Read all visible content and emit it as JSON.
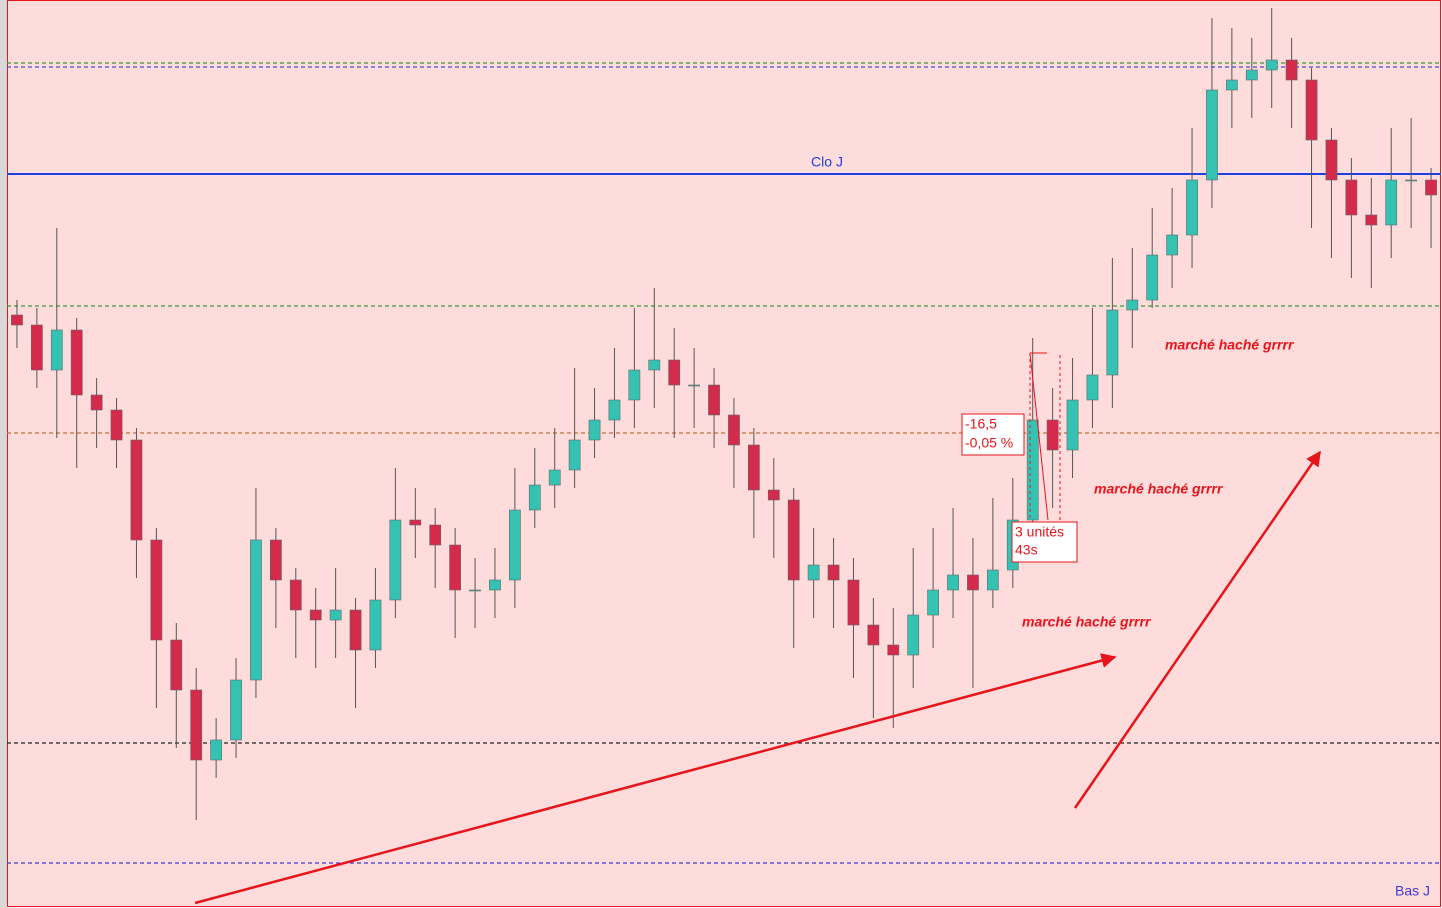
{
  "chart_data": {
    "type": "candlestick",
    "ylim": [
      0,
      908
    ],
    "up_color": "#34c3b3",
    "down_color": "#d42a4c",
    "open": [
      593,
      583,
      538,
      578,
      513,
      498,
      468,
      368,
      268,
      218,
      148,
      168,
      228,
      368,
      328,
      298,
      288,
      298,
      258,
      308,
      388,
      383,
      363,
      318,
      318,
      328,
      398,
      423,
      438,
      468,
      488,
      508,
      538,
      548,
      523,
      523,
      493,
      463,
      418,
      408,
      328,
      343,
      328,
      283,
      263,
      253,
      293,
      318,
      333,
      318,
      338,
      388,
      488,
      458,
      508,
      533,
      598,
      608,
      653,
      673,
      728,
      818,
      828,
      838,
      848,
      828,
      768,
      728,
      693,
      683,
      728,
      728
    ],
    "high": [
      608,
      600,
      680,
      590,
      530,
      510,
      480,
      380,
      285,
      240,
      190,
      250,
      420,
      380,
      340,
      320,
      340,
      310,
      340,
      440,
      420,
      400,
      380,
      350,
      360,
      440,
      460,
      480,
      540,
      520,
      560,
      600,
      620,
      580,
      560,
      540,
      510,
      480,
      450,
      420,
      380,
      370,
      350,
      310,
      300,
      360,
      380,
      400,
      370,
      410,
      430,
      570,
      520,
      550,
      600,
      650,
      660,
      700,
      720,
      780,
      890,
      880,
      870,
      900,
      870,
      840,
      780,
      750,
      730,
      780,
      790,
      740
    ],
    "low": [
      560,
      520,
      470,
      440,
      460,
      440,
      330,
      200,
      160,
      88,
      130,
      150,
      210,
      280,
      250,
      240,
      250,
      200,
      240,
      290,
      350,
      320,
      270,
      280,
      290,
      300,
      380,
      400,
      420,
      450,
      470,
      480,
      500,
      470,
      480,
      460,
      420,
      370,
      350,
      260,
      290,
      280,
      230,
      190,
      180,
      220,
      260,
      290,
      220,
      300,
      320,
      360,
      400,
      430,
      480,
      500,
      560,
      600,
      620,
      640,
      700,
      780,
      790,
      800,
      780,
      680,
      650,
      630,
      620,
      650,
      680,
      660
    ],
    "close": [
      583,
      538,
      578,
      513,
      498,
      468,
      368,
      268,
      218,
      148,
      168,
      228,
      368,
      328,
      298,
      288,
      298,
      258,
      308,
      388,
      383,
      363,
      318,
      318,
      328,
      398,
      423,
      438,
      468,
      488,
      508,
      538,
      548,
      523,
      523,
      493,
      463,
      418,
      408,
      328,
      343,
      328,
      283,
      263,
      253,
      293,
      318,
      333,
      318,
      338,
      388,
      488,
      458,
      508,
      533,
      598,
      608,
      653,
      673,
      728,
      818,
      828,
      838,
      848,
      828,
      768,
      728,
      693,
      683,
      728,
      728,
      713
    ],
    "levels": [
      {
        "value": 845,
        "color": "#3a9a3a",
        "dashed": true
      },
      {
        "value": 841,
        "color": "#4a4ad8",
        "dashed": true
      },
      {
        "value": 734,
        "color": "#1f3fe0",
        "dashed": false,
        "label": "Clo J"
      },
      {
        "value": 602,
        "color": "#3a9a3a",
        "dashed": true
      },
      {
        "value": 475,
        "color": "#c0703a",
        "dashed": true
      },
      {
        "value": 165,
        "color": "#222222",
        "dashed": true
      },
      {
        "value": 45,
        "color": "#3a3ad8",
        "dashed": true,
        "label": "Bas J"
      }
    ],
    "annotations": [
      "marché haché grrrr",
      "marché haché grrrr",
      "marché haché grrrr"
    ],
    "measure": {
      "delta": "-16,5",
      "percent": "-0,05 %",
      "units": "3 unités",
      "time": "43s"
    }
  }
}
